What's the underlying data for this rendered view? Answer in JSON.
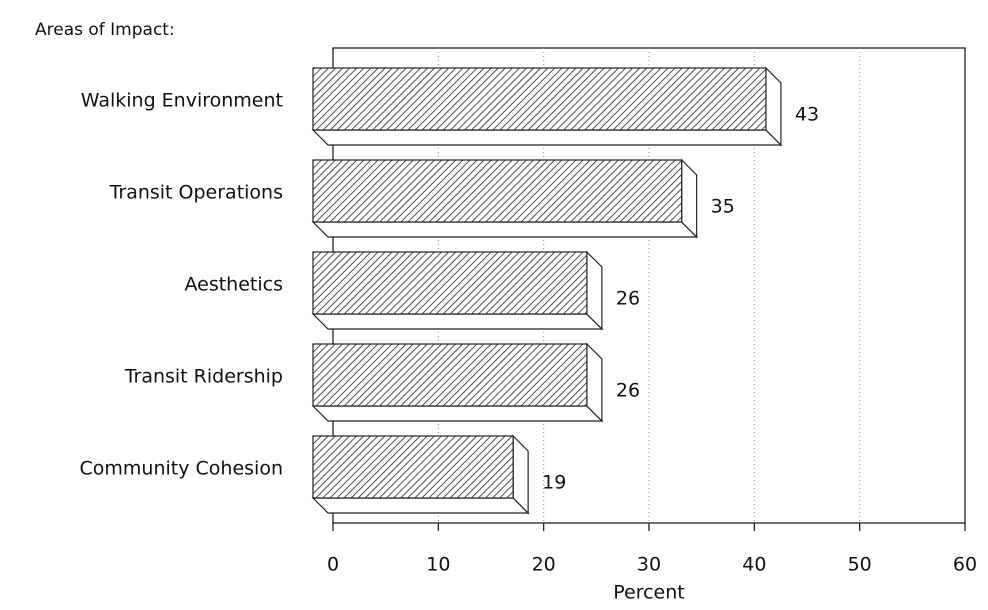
{
  "chart_data": {
    "type": "bar",
    "orientation": "horizontal",
    "title": "Areas of Impact:",
    "categories": [
      "Walking Environment",
      "Transit Operations",
      "Aesthetics",
      "Transit Ridership",
      "Community Cohesion"
    ],
    "values": [
      43,
      35,
      26,
      26,
      19
    ],
    "xlabel": "Percent",
    "xlim": [
      0,
      60
    ],
    "xticks": [
      0,
      10,
      20,
      30,
      40,
      50,
      60
    ],
    "grid": true,
    "color": "#ffffff"
  }
}
